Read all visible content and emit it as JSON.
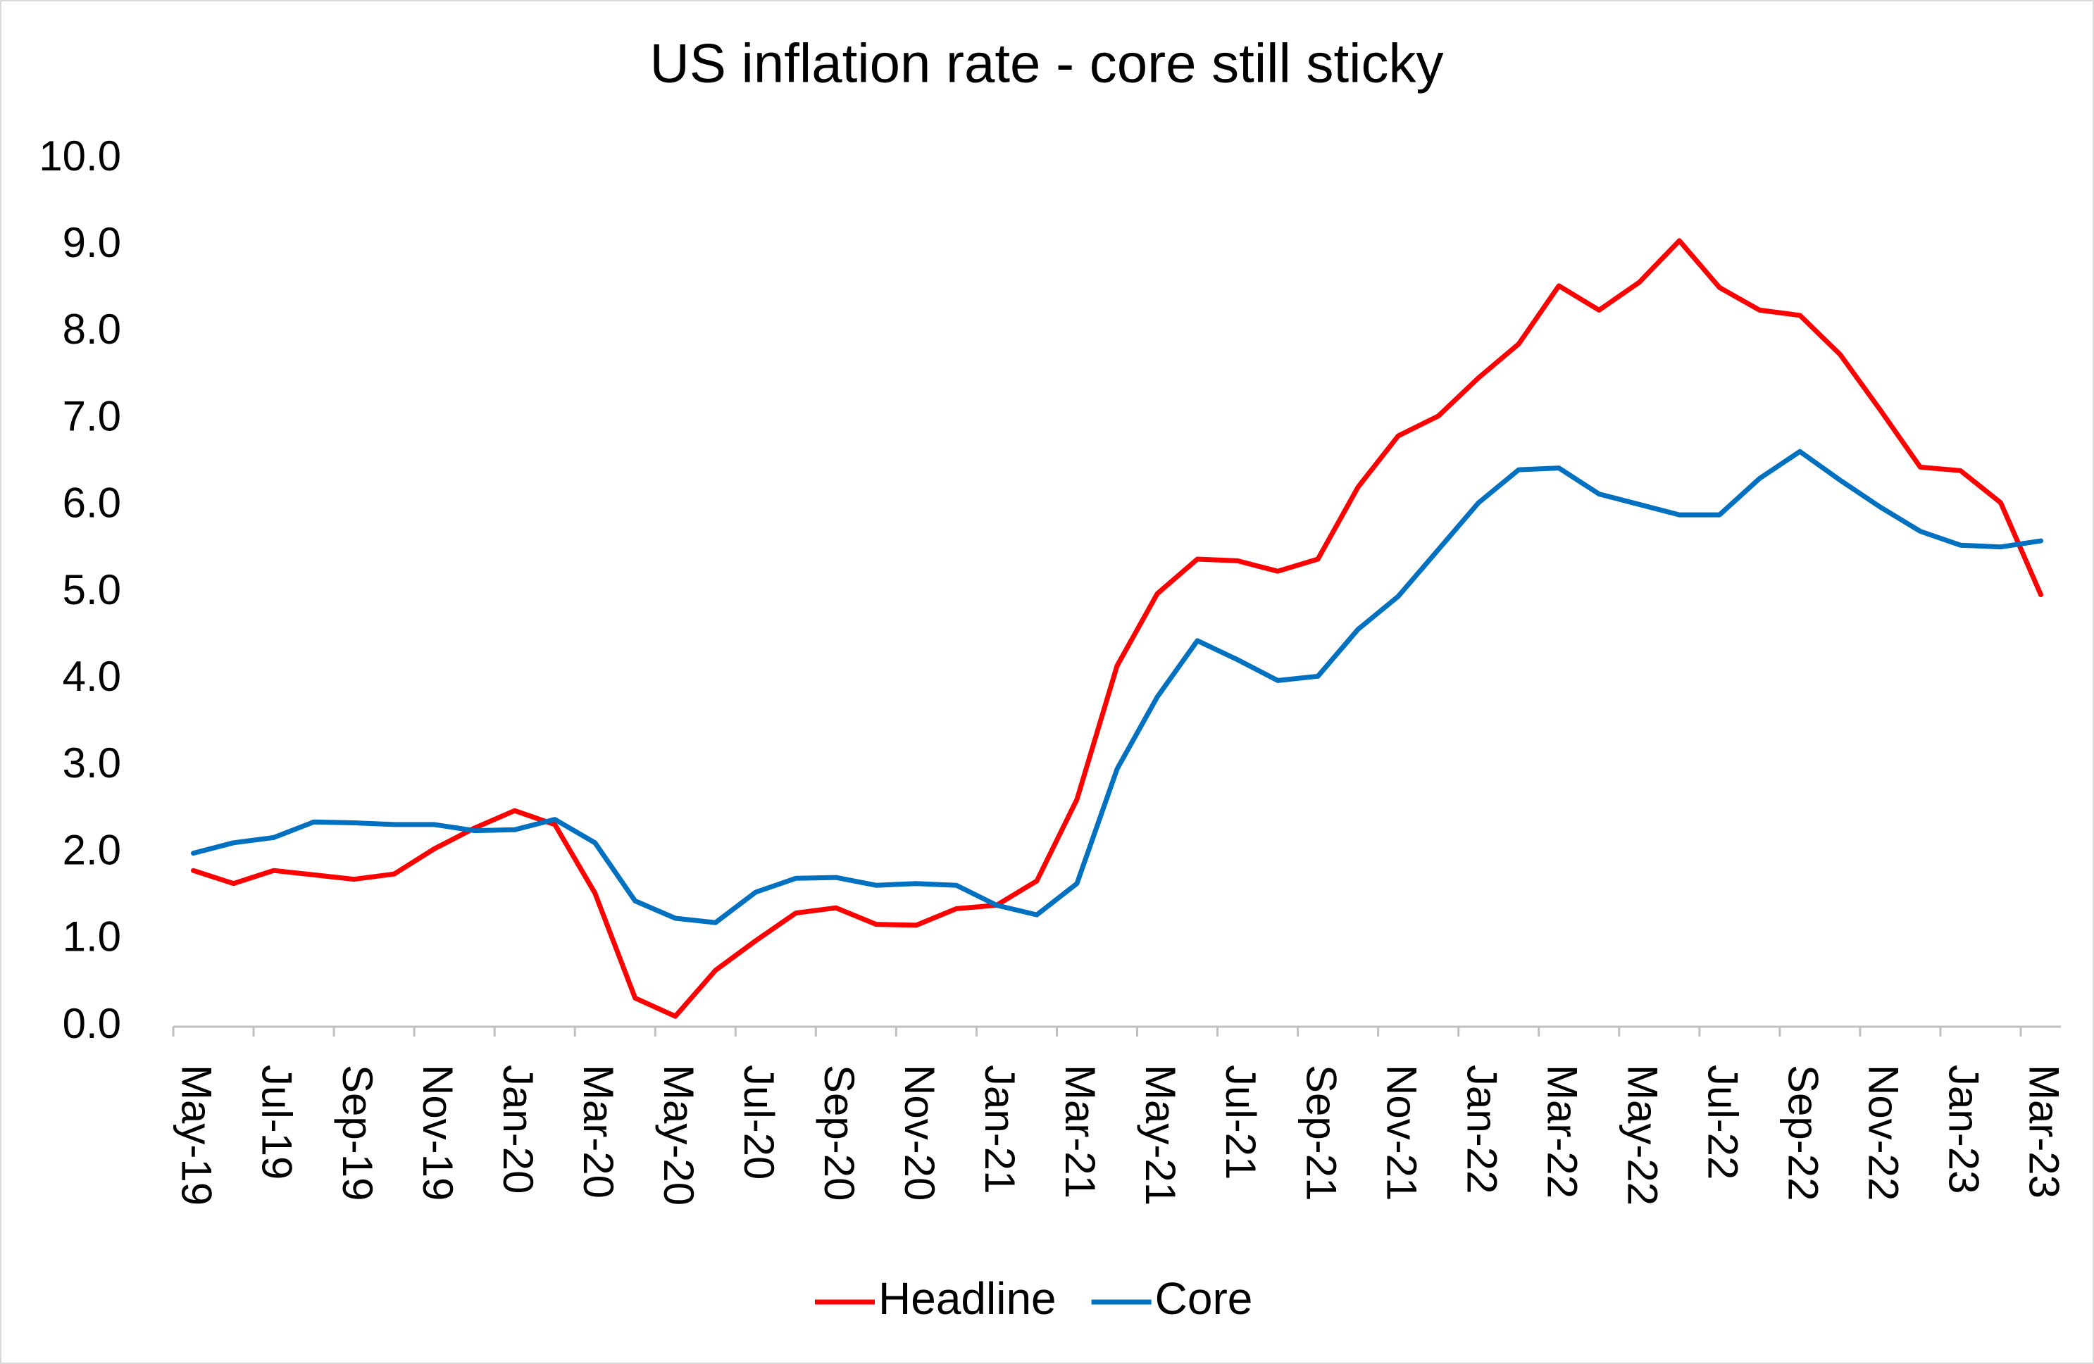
{
  "chart_data": {
    "type": "line",
    "title": "US inflation rate - core still sticky",
    "categories": [
      "May-19",
      null,
      "Jul-19",
      null,
      "Sep-19",
      null,
      "Nov-19",
      null,
      "Jan-20",
      null,
      "Mar-20",
      null,
      "May-20",
      null,
      "Jul-20",
      null,
      "Sep-20",
      null,
      "Nov-20",
      null,
      "Jan-21",
      null,
      "Mar-21",
      null,
      "May-21",
      null,
      "Jul-21",
      null,
      "Sep-21",
      null,
      "Nov-21",
      null,
      "Jan-22",
      null,
      "Mar-22",
      null,
      "May-22",
      null,
      "Jul-22",
      null,
      "Sep-22",
      null,
      "Nov-22",
      null,
      "Jan-23",
      null,
      "Mar-23"
    ],
    "series": [
      {
        "name": "Headline",
        "color": "#ff0000",
        "values": [
          1.8,
          1.65,
          1.8,
          1.75,
          1.7,
          1.76,
          2.05,
          2.29,
          2.49,
          2.33,
          1.54,
          0.33,
          0.12,
          0.65,
          0.99,
          1.31,
          1.37,
          1.18,
          1.17,
          1.36,
          1.4,
          1.68,
          2.62,
          4.16,
          4.99,
          5.39,
          5.37,
          5.25,
          5.39,
          6.22,
          6.81,
          7.04,
          7.48,
          7.87,
          8.54,
          8.26,
          8.58,
          9.06,
          8.52,
          8.26,
          8.2,
          7.75,
          7.11,
          6.45,
          6.41,
          6.04,
          4.98
        ]
      },
      {
        "name": "Core",
        "color": "#0070c0",
        "values": [
          2.0,
          2.12,
          2.18,
          2.36,
          2.35,
          2.33,
          2.33,
          2.26,
          2.27,
          2.39,
          2.12,
          1.45,
          1.25,
          1.2,
          1.55,
          1.71,
          1.72,
          1.63,
          1.65,
          1.63,
          1.4,
          1.29,
          1.65,
          2.97,
          3.8,
          4.45,
          4.23,
          3.99,
          4.04,
          4.58,
          4.96,
          5.5,
          6.04,
          6.42,
          6.44,
          6.14,
          6.02,
          5.9,
          5.9,
          6.32,
          6.63,
          6.3,
          5.99,
          5.71,
          5.55,
          5.53,
          5.6
        ]
      }
    ],
    "ylim": [
      0,
      10
    ],
    "yticks": [
      {
        "value": 0,
        "label": "0.0"
      },
      {
        "value": 1,
        "label": "1.0"
      },
      {
        "value": 2,
        "label": "2.0"
      },
      {
        "value": 3,
        "label": "3.0"
      },
      {
        "value": 4,
        "label": "4.0"
      },
      {
        "value": 5,
        "label": "5.0"
      },
      {
        "value": 6,
        "label": "6.0"
      },
      {
        "value": 7,
        "label": "7.0"
      },
      {
        "value": 8,
        "label": "8.0"
      },
      {
        "value": 9,
        "label": "9.0"
      },
      {
        "value": 10,
        "label": "10.0"
      }
    ],
    "grid": false,
    "legend": "bottom"
  }
}
